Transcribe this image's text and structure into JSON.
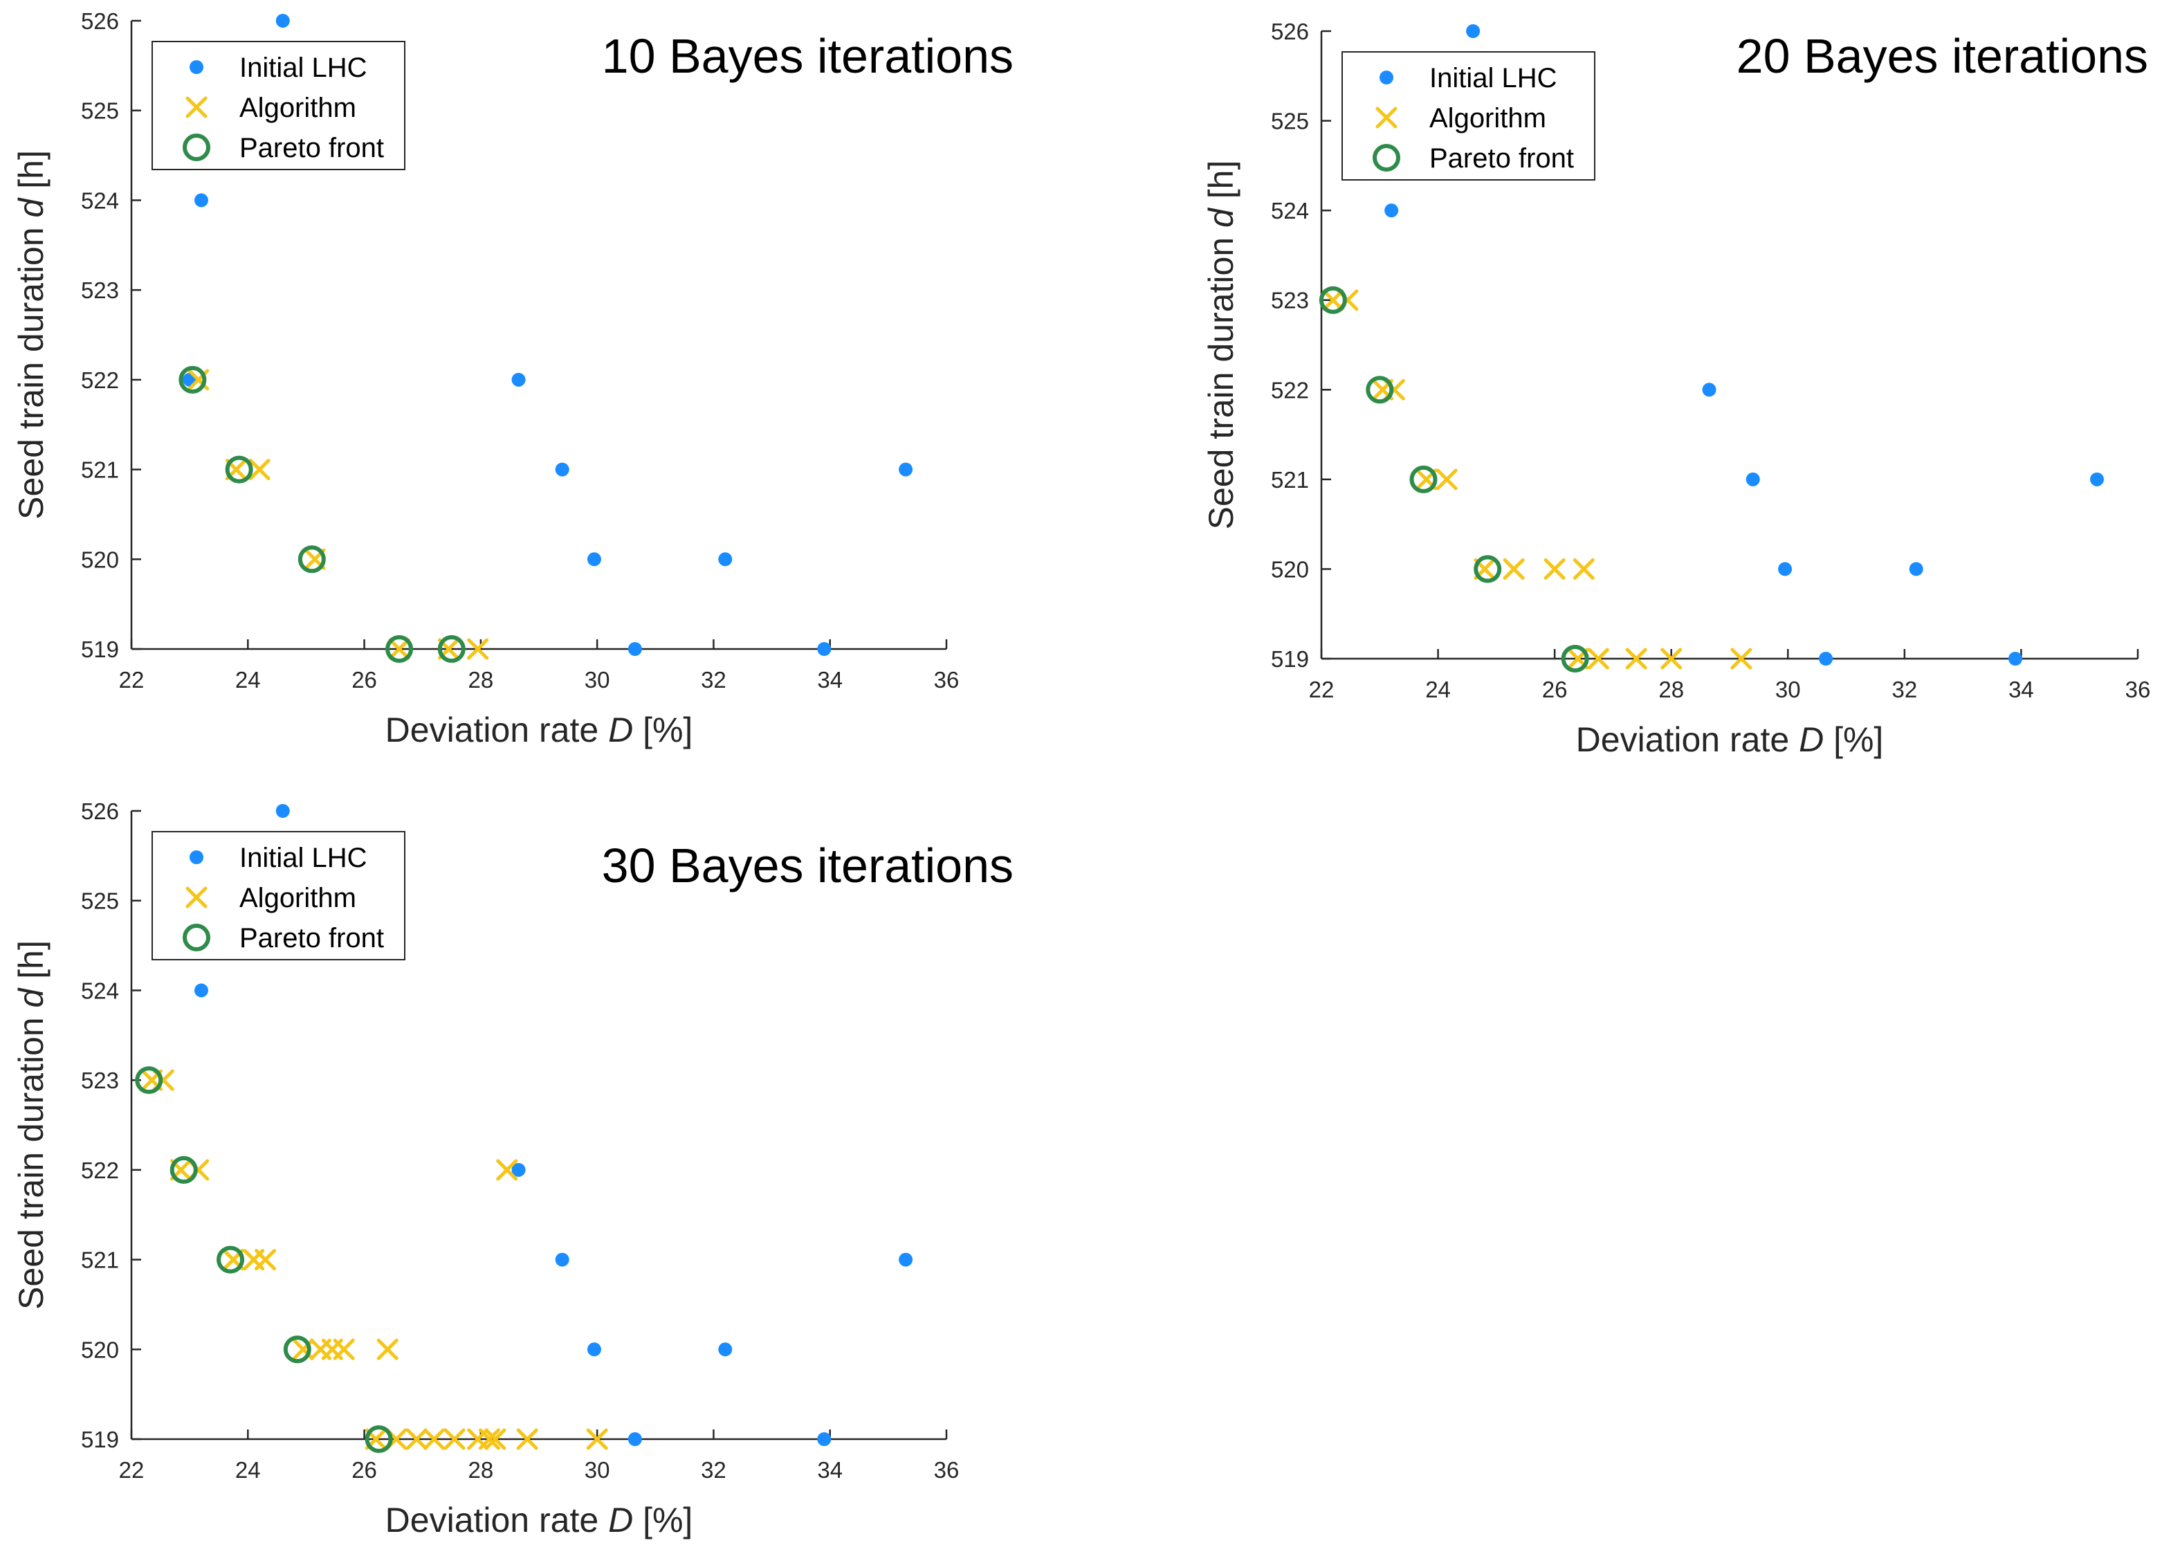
{
  "colors": {
    "initial": "#1a8cff",
    "algorithm": "#f5c518",
    "pareto": "#2e8b4a",
    "axis": "#262626"
  },
  "chart_data": [
    {
      "type": "scatter",
      "title": "10 Bayes iterations",
      "xlabel": "Deviation rate",
      "xlabel_symbol": "D",
      "xlabel_unit": "[%]",
      "ylabel": "Seed train duration",
      "ylabel_symbol": "d",
      "ylabel_unit": "[h]",
      "xlim": [
        22,
        36
      ],
      "ylim": [
        519,
        526
      ],
      "xticks": [
        22,
        24,
        26,
        28,
        30,
        32,
        34,
        36
      ],
      "yticks": [
        519,
        520,
        521,
        522,
        523,
        524,
        525,
        526
      ],
      "grid": false,
      "legend_position": "top-left",
      "series": [
        {
          "name": "Initial LHC",
          "marker": "dot",
          "points": [
            [
              24.6,
              526
            ],
            [
              23.2,
              524
            ],
            [
              28.65,
              522
            ],
            [
              29.4,
              521
            ],
            [
              35.3,
              521
            ],
            [
              29.95,
              520
            ],
            [
              32.2,
              520
            ],
            [
              30.65,
              519
            ],
            [
              33.9,
              519
            ],
            [
              23.0,
              522
            ]
          ]
        },
        {
          "name": "Algorithm",
          "marker": "x",
          "points": [
            [
              23.15,
              522
            ],
            [
              23.8,
              521
            ],
            [
              24.2,
              521
            ],
            [
              25.15,
              520
            ],
            [
              26.6,
              519
            ],
            [
              27.45,
              519
            ],
            [
              27.95,
              519
            ]
          ]
        },
        {
          "name": "Pareto front",
          "marker": "circle",
          "points": [
            [
              23.05,
              522
            ],
            [
              23.85,
              521
            ],
            [
              25.1,
              520
            ],
            [
              26.6,
              519
            ],
            [
              27.5,
              519
            ]
          ]
        }
      ]
    },
    {
      "type": "scatter",
      "title": "20 Bayes iterations",
      "xlabel": "Deviation rate",
      "xlabel_symbol": "D",
      "xlabel_unit": "[%]",
      "ylabel": "Seed train duration",
      "ylabel_symbol": "d",
      "ylabel_unit": "[h]",
      "xlim": [
        22,
        36
      ],
      "ylim": [
        519,
        526
      ],
      "xticks": [
        22,
        24,
        26,
        28,
        30,
        32,
        34,
        36
      ],
      "yticks": [
        519,
        520,
        521,
        522,
        523,
        524,
        525,
        526
      ],
      "grid": false,
      "legend_position": "top-left",
      "series": [
        {
          "name": "Initial LHC",
          "marker": "dot",
          "points": [
            [
              24.6,
              526
            ],
            [
              23.2,
              524
            ],
            [
              28.65,
              522
            ],
            [
              29.4,
              521
            ],
            [
              35.3,
              521
            ],
            [
              29.95,
              520
            ],
            [
              32.2,
              520
            ],
            [
              30.65,
              519
            ],
            [
              33.9,
              519
            ]
          ]
        },
        {
          "name": "Algorithm",
          "marker": "x",
          "points": [
            [
              22.2,
              523
            ],
            [
              22.45,
              523
            ],
            [
              23.05,
              522
            ],
            [
              23.25,
              522
            ],
            [
              23.8,
              521
            ],
            [
              24.15,
              521
            ],
            [
              24.8,
              520
            ],
            [
              25.3,
              520
            ],
            [
              26.0,
              520
            ],
            [
              26.5,
              520
            ],
            [
              26.4,
              519
            ],
            [
              26.75,
              519
            ],
            [
              27.4,
              519
            ],
            [
              28.0,
              519
            ],
            [
              29.2,
              519
            ]
          ]
        },
        {
          "name": "Pareto front",
          "marker": "circle",
          "points": [
            [
              22.2,
              523
            ],
            [
              23.0,
              522
            ],
            [
              23.75,
              521
            ],
            [
              24.85,
              520
            ],
            [
              26.35,
              519
            ]
          ]
        }
      ]
    },
    {
      "type": "scatter",
      "title": "30 Bayes iterations",
      "xlabel": "Deviation rate",
      "xlabel_symbol": "D",
      "xlabel_unit": "[%]",
      "ylabel": "Seed train duration",
      "ylabel_symbol": "d",
      "ylabel_unit": "[h]",
      "xlim": [
        22,
        36
      ],
      "ylim": [
        519,
        526
      ],
      "xticks": [
        22,
        24,
        26,
        28,
        30,
        32,
        34,
        36
      ],
      "yticks": [
        519,
        520,
        521,
        522,
        523,
        524,
        525,
        526
      ],
      "grid": false,
      "legend_position": "top-left",
      "series": [
        {
          "name": "Initial LHC",
          "marker": "dot",
          "points": [
            [
              24.6,
              526
            ],
            [
              23.2,
              524
            ],
            [
              28.65,
              522
            ],
            [
              29.4,
              521
            ],
            [
              35.3,
              521
            ],
            [
              29.95,
              520
            ],
            [
              32.2,
              520
            ],
            [
              30.65,
              519
            ],
            [
              33.9,
              519
            ]
          ]
        },
        {
          "name": "Algorithm",
          "marker": "x",
          "points": [
            [
              22.35,
              523
            ],
            [
              22.55,
              523
            ],
            [
              22.85,
              522
            ],
            [
              23.15,
              522
            ],
            [
              28.45,
              522
            ],
            [
              23.75,
              521
            ],
            [
              24.1,
              521
            ],
            [
              24.3,
              521
            ],
            [
              24.95,
              520
            ],
            [
              25.25,
              520
            ],
            [
              25.45,
              520
            ],
            [
              25.65,
              520
            ],
            [
              26.4,
              520
            ],
            [
              26.2,
              519
            ],
            [
              26.55,
              519
            ],
            [
              26.9,
              519
            ],
            [
              27.2,
              519
            ],
            [
              27.55,
              519
            ],
            [
              27.95,
              519
            ],
            [
              28.15,
              519
            ],
            [
              28.25,
              519
            ],
            [
              28.8,
              519
            ],
            [
              30.0,
              519
            ]
          ]
        },
        {
          "name": "Pareto front",
          "marker": "circle",
          "points": [
            [
              22.3,
              523
            ],
            [
              22.9,
              522
            ],
            [
              23.7,
              521
            ],
            [
              24.85,
              520
            ],
            [
              26.25,
              519
            ]
          ]
        }
      ]
    }
  ]
}
